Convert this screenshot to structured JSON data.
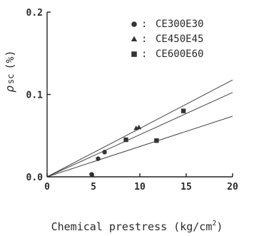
{
  "chart_data": {
    "type": "scatter",
    "xlabel": "Chemical prestress (kg/cm",
    "xlabel_sup": "2",
    "xlabel_close": ")",
    "ylabel_main": "ρ",
    "ylabel_sub": "sc",
    "ylabel_unit": "(%)",
    "xlim": [
      0,
      20
    ],
    "ylim": [
      0,
      0.2
    ],
    "x_ticks": [
      "0",
      "5",
      "10",
      "15",
      "20"
    ],
    "x_tick_values": [
      0,
      5,
      10,
      15,
      20
    ],
    "y_ticks": [
      "0.0",
      "0.1",
      "0.2"
    ],
    "y_tick_values": [
      0,
      0.1,
      0.2
    ],
    "grid": false,
    "legend_position": "top-right",
    "legend_separator": ":",
    "series": [
      {
        "name": "CE300E30",
        "marker": "circle",
        "points": [
          [
            4.8,
            0.003
          ],
          [
            5.5,
            0.022
          ],
          [
            6.2,
            0.03
          ]
        ],
        "fit_slope": 0.00512
      },
      {
        "name": "CE450E45",
        "marker": "triangle",
        "points": [
          [
            9.6,
            0.059
          ],
          [
            9.9,
            0.06
          ]
        ],
        "fit_slope": 0.00588
      },
      {
        "name": "CE600E60",
        "marker": "square",
        "points": [
          [
            8.5,
            0.045
          ],
          [
            11.8,
            0.044
          ],
          [
            14.7,
            0.08
          ]
        ],
        "fit_slope": 0.00368
      }
    ]
  }
}
